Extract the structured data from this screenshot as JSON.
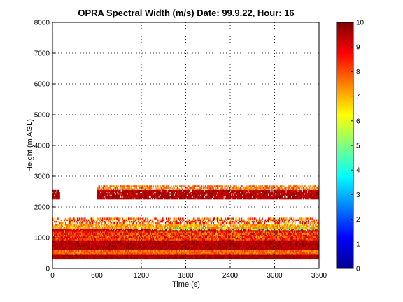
{
  "chart_data": {
    "type": "heatmap",
    "title": "OPRA Spectral Width (m/s)  Date: 99.9.22, Hour: 16",
    "xlabel": "Time (s)",
    "ylabel": "Height (m AGL)",
    "xlim": [
      0,
      3600
    ],
    "ylim": [
      0,
      8000
    ],
    "x_ticks": [
      "0",
      "600",
      "1200",
      "1800",
      "2400",
      "3000",
      "3600"
    ],
    "y_ticks": [
      "0",
      "1000",
      "2000",
      "3000",
      "4000",
      "5000",
      "6000",
      "7000",
      "8000"
    ],
    "grid": true,
    "colorbar": {
      "range": [
        0,
        10
      ],
      "ticks": [
        "0",
        "1",
        "2",
        "3",
        "4",
        "5",
        "6",
        "7",
        "8",
        "9",
        "10"
      ],
      "colormap": "jet"
    },
    "layers": [
      {
        "y_from": 300,
        "y_to": 450,
        "x_from": 0,
        "x_to": 3600,
        "value_min": 9.2,
        "value_max": 10,
        "coverage": 1.0
      },
      {
        "y_from": 450,
        "y_to": 600,
        "x_from": 0,
        "x_to": 3600,
        "value_min": 7.0,
        "value_max": 8.5,
        "coverage": 1.0
      },
      {
        "y_from": 600,
        "y_to": 900,
        "x_from": 0,
        "x_to": 3600,
        "value_min": 9.0,
        "value_max": 10,
        "coverage": 1.0
      },
      {
        "y_from": 900,
        "y_to": 1200,
        "x_from": 0,
        "x_to": 3600,
        "value_min": 7.0,
        "value_max": 9.5,
        "coverage": 1.0
      },
      {
        "y_from": 1200,
        "y_to": 1300,
        "x_from": 0,
        "x_to": 3600,
        "value_min": 8.5,
        "value_max": 10,
        "coverage": 0.9
      },
      {
        "y_from": 1250,
        "y_to": 1350,
        "x_from": 1200,
        "x_to": 3600,
        "value_min": 4.0,
        "value_max": 6.5,
        "coverage": 0.5
      },
      {
        "y_from": 1300,
        "y_to": 1450,
        "x_from": 0,
        "x_to": 3600,
        "value_min": 6.5,
        "value_max": 8.0,
        "coverage": 0.8
      },
      {
        "y_from": 1450,
        "y_to": 1650,
        "x_from": 0,
        "x_to": 3600,
        "value_min": 6.5,
        "value_max": 9.5,
        "coverage": 0.5
      },
      {
        "y_from": 2250,
        "y_to": 2550,
        "x_from": 600,
        "x_to": 3600,
        "value_min": 9.0,
        "value_max": 10,
        "coverage": 0.9
      },
      {
        "y_from": 2550,
        "y_to": 2700,
        "x_from": 600,
        "x_to": 3600,
        "value_min": 7.0,
        "value_max": 8.5,
        "coverage": 0.6
      },
      {
        "y_from": 2250,
        "y_to": 2550,
        "x_from": 0,
        "x_to": 100,
        "value_min": 9.0,
        "value_max": 10,
        "coverage": 0.9
      }
    ]
  }
}
